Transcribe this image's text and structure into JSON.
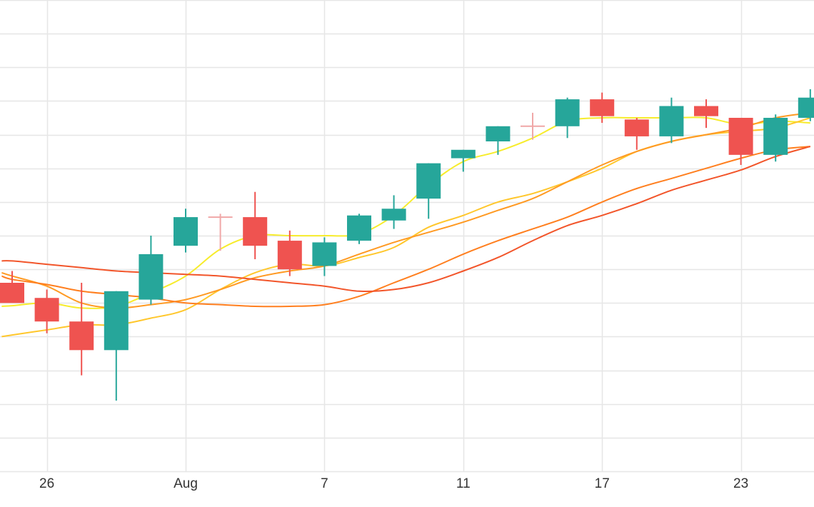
{
  "chart_data": {
    "type": "candlestick",
    "x_axis": {
      "tick_labels": [
        "26",
        "Aug",
        "7",
        "11",
        "17",
        "23"
      ],
      "tick_index": [
        1,
        5,
        9,
        13,
        17,
        21
      ]
    },
    "grid": true,
    "ylim": [
      0,
      14
    ],
    "candles": [
      {
        "i": 0,
        "open": 5.6,
        "high": 5.95,
        "low": 5.05,
        "close": 5.0
      },
      {
        "i": 1,
        "open": 5.15,
        "high": 5.4,
        "low": 4.1,
        "close": 4.45
      },
      {
        "i": 2,
        "open": 4.45,
        "high": 5.6,
        "low": 2.85,
        "close": 3.6
      },
      {
        "i": 3,
        "open": 3.6,
        "high": 5.35,
        "low": 2.1,
        "close": 5.35
      },
      {
        "i": 4,
        "open": 5.1,
        "high": 7.0,
        "low": 4.95,
        "close": 6.45
      },
      {
        "i": 5,
        "open": 6.7,
        "high": 7.8,
        "low": 6.5,
        "close": 7.55
      },
      {
        "i": 6,
        "open": 7.55,
        "high": 7.65,
        "low": 6.55,
        "close": 7.55
      },
      {
        "i": 7,
        "open": 7.55,
        "high": 8.3,
        "low": 6.3,
        "close": 6.7
      },
      {
        "i": 8,
        "open": 6.85,
        "high": 7.15,
        "low": 5.8,
        "close": 6.0
      },
      {
        "i": 9,
        "open": 6.1,
        "high": 6.95,
        "low": 5.8,
        "close": 6.8
      },
      {
        "i": 10,
        "open": 6.85,
        "high": 7.65,
        "low": 6.75,
        "close": 7.6
      },
      {
        "i": 11,
        "open": 7.45,
        "high": 8.2,
        "low": 7.2,
        "close": 7.8
      },
      {
        "i": 12,
        "open": 8.1,
        "high": 9.15,
        "low": 7.5,
        "close": 9.15
      },
      {
        "i": 13,
        "open": 9.3,
        "high": 9.55,
        "low": 8.9,
        "close": 9.55
      },
      {
        "i": 14,
        "open": 9.8,
        "high": 10.25,
        "low": 9.4,
        "close": 10.25
      },
      {
        "i": 15,
        "open": 10.25,
        "high": 10.65,
        "low": 9.85,
        "close": 10.25
      },
      {
        "i": 16,
        "open": 10.25,
        "high": 11.1,
        "low": 9.9,
        "close": 11.05
      },
      {
        "i": 17,
        "open": 11.05,
        "high": 11.25,
        "low": 10.35,
        "close": 10.55
      },
      {
        "i": 18,
        "open": 10.45,
        "high": 10.5,
        "low": 9.55,
        "close": 9.95
      },
      {
        "i": 19,
        "open": 9.95,
        "high": 11.1,
        "low": 9.75,
        "close": 10.85
      },
      {
        "i": 20,
        "open": 10.85,
        "high": 11.05,
        "low": 10.2,
        "close": 10.55
      },
      {
        "i": 21,
        "open": 10.5,
        "high": 10.5,
        "low": 9.1,
        "close": 9.4
      },
      {
        "i": 22,
        "open": 9.4,
        "high": 10.6,
        "low": 9.2,
        "close": 10.5
      },
      {
        "i": 23,
        "open": 10.5,
        "high": 11.35,
        "low": 10.4,
        "close": 11.1
      }
    ],
    "moving_averages": [
      {
        "color": "#f7ec2c",
        "values": [
          [
            -0.3,
            4.9
          ],
          [
            0,
            4.92
          ],
          [
            1,
            5.0
          ],
          [
            2,
            4.85
          ],
          [
            3,
            4.9
          ],
          [
            4,
            5.3
          ],
          [
            5,
            5.8
          ],
          [
            6,
            6.6
          ],
          [
            7,
            7.0
          ],
          [
            8,
            7.0
          ],
          [
            9,
            7.0
          ],
          [
            10,
            7.05
          ],
          [
            11,
            7.6
          ],
          [
            12,
            8.5
          ],
          [
            13,
            9.2
          ],
          [
            14,
            9.5
          ],
          [
            15,
            9.9
          ],
          [
            16,
            10.4
          ],
          [
            17,
            10.5
          ],
          [
            18,
            10.5
          ],
          [
            19,
            10.5
          ],
          [
            20,
            10.5
          ],
          [
            21,
            10.3
          ],
          [
            22,
            10.4
          ],
          [
            23,
            10.35
          ]
        ]
      },
      {
        "color": "#ffc72c",
        "values": [
          [
            -0.3,
            4.0
          ],
          [
            0,
            4.05
          ],
          [
            1,
            4.2
          ],
          [
            2,
            4.35
          ],
          [
            3,
            4.35
          ],
          [
            4,
            4.55
          ],
          [
            5,
            4.8
          ],
          [
            6,
            5.4
          ],
          [
            7,
            5.9
          ],
          [
            8,
            6.15
          ],
          [
            9,
            6.1
          ],
          [
            10,
            6.35
          ],
          [
            11,
            6.65
          ],
          [
            12,
            7.25
          ],
          [
            13,
            7.6
          ],
          [
            14,
            8.0
          ],
          [
            15,
            8.25
          ],
          [
            16,
            8.6
          ],
          [
            17,
            9.0
          ],
          [
            18,
            9.5
          ],
          [
            19,
            9.8
          ],
          [
            20,
            10.0
          ],
          [
            21,
            10.1
          ],
          [
            22,
            10.2
          ],
          [
            23,
            10.5
          ]
        ]
      },
      {
        "color": "#ff9a23",
        "values": [
          [
            -0.3,
            5.9
          ],
          [
            0,
            5.8
          ],
          [
            1,
            5.5
          ],
          [
            2,
            5.0
          ],
          [
            3,
            4.85
          ],
          [
            4,
            4.95
          ],
          [
            5,
            5.1
          ],
          [
            6,
            5.4
          ],
          [
            7,
            5.75
          ],
          [
            8,
            5.95
          ],
          [
            9,
            6.1
          ],
          [
            10,
            6.45
          ],
          [
            11,
            6.8
          ],
          [
            12,
            7.1
          ],
          [
            13,
            7.4
          ],
          [
            14,
            7.75
          ],
          [
            15,
            8.1
          ],
          [
            16,
            8.6
          ],
          [
            17,
            9.1
          ],
          [
            18,
            9.5
          ],
          [
            19,
            9.8
          ],
          [
            20,
            10.0
          ],
          [
            21,
            10.2
          ],
          [
            22,
            10.5
          ],
          [
            23,
            10.65
          ]
        ]
      },
      {
        "color": "#ff7f1f",
        "values": [
          [
            -0.3,
            5.8
          ],
          [
            0,
            5.7
          ],
          [
            1,
            5.55
          ],
          [
            2,
            5.35
          ],
          [
            3,
            5.25
          ],
          [
            4,
            5.15
          ],
          [
            5,
            5.0
          ],
          [
            6,
            4.95
          ],
          [
            7,
            4.9
          ],
          [
            8,
            4.9
          ],
          [
            9,
            4.95
          ],
          [
            10,
            5.2
          ],
          [
            11,
            5.6
          ],
          [
            12,
            6.0
          ],
          [
            13,
            6.45
          ],
          [
            14,
            6.85
          ],
          [
            15,
            7.2
          ],
          [
            16,
            7.55
          ],
          [
            17,
            8.0
          ],
          [
            18,
            8.4
          ],
          [
            19,
            8.7
          ],
          [
            20,
            9.0
          ],
          [
            21,
            9.3
          ],
          [
            22,
            9.55
          ],
          [
            23,
            9.65
          ]
        ]
      },
      {
        "color": "#f2552a",
        "values": [
          [
            -0.3,
            6.25
          ],
          [
            0,
            6.25
          ],
          [
            1,
            6.15
          ],
          [
            2,
            6.05
          ],
          [
            3,
            5.95
          ],
          [
            4,
            5.9
          ],
          [
            5,
            5.85
          ],
          [
            6,
            5.8
          ],
          [
            7,
            5.7
          ],
          [
            8,
            5.6
          ],
          [
            9,
            5.5
          ],
          [
            10,
            5.35
          ],
          [
            11,
            5.4
          ],
          [
            12,
            5.6
          ],
          [
            13,
            5.95
          ],
          [
            14,
            6.35
          ],
          [
            15,
            6.85
          ],
          [
            16,
            7.3
          ],
          [
            17,
            7.6
          ],
          [
            18,
            7.95
          ],
          [
            19,
            8.35
          ],
          [
            20,
            8.65
          ],
          [
            21,
            8.95
          ],
          [
            22,
            9.35
          ],
          [
            23,
            9.65
          ]
        ]
      }
    ],
    "colors": {
      "up": "#26a69a",
      "down": "#ef5350",
      "neutral": "#f0a7a7",
      "grid": "#e6e6e6"
    }
  }
}
